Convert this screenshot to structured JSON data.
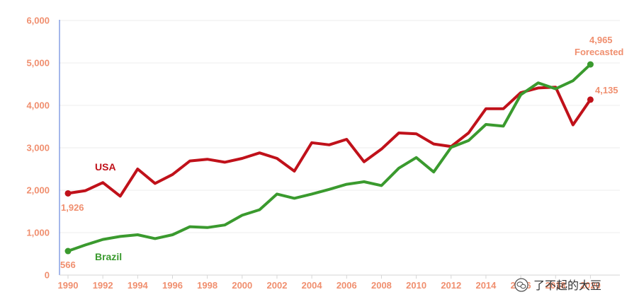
{
  "chart_data": {
    "type": "line",
    "title": "",
    "xlabel": "",
    "ylabel": "",
    "x": [
      1990,
      1991,
      1992,
      1993,
      1994,
      1995,
      1996,
      1997,
      1998,
      1999,
      2000,
      2001,
      2002,
      2003,
      2004,
      2005,
      2006,
      2007,
      2008,
      2009,
      2010,
      2011,
      2012,
      2013,
      2014,
      2015,
      2016,
      2017,
      2018,
      2019,
      2020,
      2021
    ],
    "xticks": [
      "1990",
      "1992",
      "1994",
      "1996",
      "1998",
      "2000",
      "2002",
      "2004",
      "2006",
      "2008",
      "2010",
      "2012",
      "2014",
      "2016",
      "2018",
      "2020"
    ],
    "yticks": [
      "0",
      "1,000",
      "2,000",
      "3,000",
      "4,000",
      "5,000",
      "6,000"
    ],
    "ylim": [
      0,
      6000
    ],
    "xlim": [
      1990,
      2021
    ],
    "grid": true,
    "series": [
      {
        "name": "USA",
        "color": "#c0111a",
        "values": [
          1926,
          1990,
          2180,
          1860,
          2500,
          2160,
          2370,
          2690,
          2730,
          2660,
          2750,
          2880,
          2750,
          2450,
          3120,
          3070,
          3200,
          2670,
          2970,
          3350,
          3330,
          3090,
          3030,
          3350,
          3920,
          3920,
          4300,
          4410,
          4430,
          3540,
          4135,
          null
        ]
      },
      {
        "name": "Brazil",
        "color": "#3a9a2e",
        "values": [
          566,
          710,
          840,
          910,
          950,
          860,
          950,
          1140,
          1120,
          1180,
          1410,
          1540,
          1910,
          1810,
          1910,
          2020,
          2140,
          2200,
          2110,
          2520,
          2770,
          2430,
          3010,
          3170,
          3550,
          3510,
          4250,
          4530,
          4390,
          4580,
          4965,
          null
        ]
      }
    ],
    "annotations": {
      "usa_start": "1,926",
      "brazil_start": "566",
      "usa_end": "4,135",
      "brazil_end": "4,965",
      "forecast": "Forecasted"
    }
  },
  "watermark": {
    "icon": "wechat-icon",
    "text": "了不起的大豆"
  },
  "colors": {
    "tick_text": "#f08f6f",
    "axis": "#4a6fd6",
    "grid": "#ececec"
  }
}
